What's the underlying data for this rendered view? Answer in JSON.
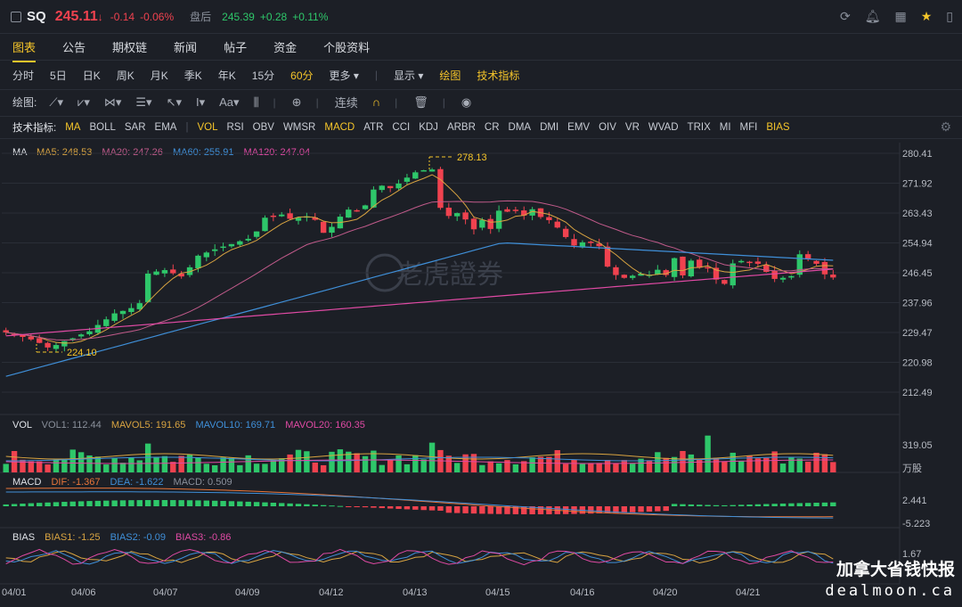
{
  "header": {
    "symbol": "SQ",
    "price": "245.11",
    "arrow": "↓",
    "change": "-0.14",
    "change_pct": "-0.06%",
    "after_label": "盘后",
    "after_price": "245.39",
    "after_change": "+0.28",
    "after_pct": "+0.11%"
  },
  "tabs": [
    "图表",
    "公告",
    "期权链",
    "新闻",
    "帖子",
    "资金",
    "个股资料"
  ],
  "periods": [
    "分时",
    "5日",
    "日K",
    "周K",
    "月K",
    "季K",
    "年K",
    "15分",
    "60分"
  ],
  "period_more": "更多",
  "display_label": "显示",
  "draw_label": "绘图",
  "tech_label": "技术指标",
  "draw_tools": {
    "label": "绘图:",
    "continuous": "连续"
  },
  "indicators": {
    "label": "技术指标:",
    "items": [
      "MA",
      "BOLL",
      "SAR",
      "EMA",
      "|",
      "VOL",
      "RSI",
      "OBV",
      "WMSR",
      "MACD",
      "ATR",
      "CCI",
      "KDJ",
      "ARBR",
      "CR",
      "DMA",
      "DMI",
      "EMV",
      "OIV",
      "VR",
      "WVAD",
      "TRIX",
      "MI",
      "MFI",
      "BIAS"
    ],
    "active": [
      "MA",
      "VOL",
      "MACD",
      "BIAS"
    ]
  },
  "ma_legend": {
    "name": "MA",
    "ma5": "MA5: 248.53",
    "ma20": "MA20: 247.26",
    "ma60": "MA60: 255.91",
    "ma120": "MA120: 247.04"
  },
  "vol_legend": {
    "name": "VOL",
    "vol1": "VOL1: 112.44",
    "mavol5": "MAVOL5: 191.65",
    "mavol10": "MAVOL10: 169.71",
    "mavol20": "MAVOL20: 160.35"
  },
  "macd_legend": {
    "name": "MACD",
    "dif": "DIF: -1.367",
    "dea": "DEA: -1.622",
    "macd": "MACD: 0.509"
  },
  "bias_legend": {
    "name": "BIAS",
    "b1": "BIAS1: -1.25",
    "b2": "BIAS2: -0.09",
    "b3": "BIAS3: -0.86"
  },
  "price_axis": [
    "280.41",
    "271.92",
    "263.43",
    "254.94",
    "246.45",
    "237.96",
    "229.47",
    "220.98",
    "212.49"
  ],
  "vol_axis": [
    "319.05",
    "万股"
  ],
  "macd_axis": [
    "2.441",
    "-5.223"
  ],
  "bias_axis": [
    "1.67"
  ],
  "date_axis": [
    "04/01",
    "04/06",
    "04/07",
    "04/09",
    "04/12",
    "04/13",
    "04/15",
    "04/16",
    "04/20",
    "04/21"
  ],
  "high_marker": "278.13",
  "low_marker": "224.10",
  "watermark": "老虎證券",
  "brand": {
    "title": "加拿大省钱快报",
    "url": "dealmoon.ca"
  },
  "colors": {
    "up": "#2ec76a",
    "down": "#f0424f",
    "accent": "#f5c52a"
  },
  "chart_data": {
    "type": "candlestick",
    "series": [
      {
        "name": "price",
        "values": [
          229.5,
          228.8,
          228.2,
          227.5,
          226.5,
          225.2,
          225.9,
          227.0,
          227.8,
          228.9,
          229.8,
          231.6,
          233.2,
          234.9,
          235.6,
          236.4,
          237.8,
          246.2,
          246.8,
          247.2,
          246.3,
          245.4,
          248.0,
          251.3,
          252.2,
          253.1,
          253.9,
          254.6,
          255.4,
          256.1,
          258.2,
          262.1,
          262.4,
          263.0,
          261.8,
          262.1,
          262.5,
          261.5,
          257.8,
          259.5,
          262.4,
          264.4,
          264.2,
          265.6,
          270.1,
          271.2,
          270.5,
          271.8,
          273.5,
          275.0,
          275.6,
          275.8,
          264.9,
          262.6,
          263.4,
          261.6,
          258.8,
          261.5,
          258.9,
          264.1,
          263.8,
          264.3,
          262.7,
          264.5,
          262.3,
          261.4,
          259.3,
          256.6,
          254.2,
          255.1,
          255.0,
          254.0,
          248.2,
          245.8,
          245.0,
          245.6,
          246.2,
          245.9,
          247.3,
          245.8,
          250.6,
          245.7,
          249.9,
          247.9,
          248.0,
          244.5,
          243.3,
          249.1,
          249.8,
          249.5,
          249.0,
          246.7,
          244.7,
          245.0,
          245.5,
          251.7,
          250.3,
          249.0,
          246.0,
          245.1
        ]
      },
      {
        "name": "MA5"
      },
      {
        "name": "MA20"
      },
      {
        "name": "MA60"
      },
      {
        "name": "MA120"
      }
    ]
  }
}
